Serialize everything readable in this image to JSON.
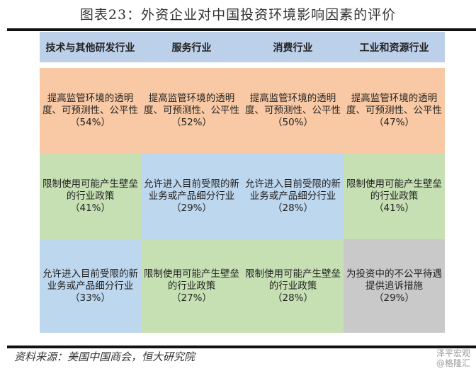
{
  "title": "图表23：外资企业对中国投资环境影响因素的评价",
  "headers": [
    "技术与其他研发行业",
    "服务行业",
    "消费行业",
    "工业和资源行业"
  ],
  "rows": [
    [
      {
        "text": "提高监管环境的透明度、可预测性、公平性",
        "pct": "（54%）",
        "color": "orange"
      },
      {
        "text": "提高监管环境的透明度、可预测性、公平性",
        "pct": "（52%）",
        "color": "orange"
      },
      {
        "text": "提高监管环境的透明度、可预测性、公平性",
        "pct": "（50%）",
        "color": "orange"
      },
      {
        "text": "提高监管环境的透明度、可预测性、公平性",
        "pct": "（47%）",
        "color": "orange"
      }
    ],
    [
      {
        "text": "限制使用可能产生壁垒的行业政策",
        "pct": "（41%）",
        "color": "green"
      },
      {
        "text": "允许进入目前受限的新业务或产品细分行业",
        "pct": "（29%）",
        "color": "blue"
      },
      {
        "text": "允许进入目前受限的新业务或产品细分行业",
        "pct": "（28%）",
        "color": "blue"
      },
      {
        "text": "限制使用可能产生壁垒的行业政策",
        "pct": "（41%）",
        "color": "green"
      }
    ],
    [
      {
        "text": "允许进入目前受限的新业务或产品细分行业",
        "pct": "（33%）",
        "color": "blue"
      },
      {
        "text": "限制使用可能产生壁垒的行业政策",
        "pct": "（27%）",
        "color": "green"
      },
      {
        "text": "限制使用可能产生壁垒的行业政策",
        "pct": "（28%）",
        "color": "green"
      },
      {
        "text": "为投资中的不公平待遇提供追诉措施",
        "pct": "（29%）",
        "color": "gray"
      }
    ]
  ],
  "colors": {
    "header": "#bcd0ea",
    "orange": "#f8c9a4",
    "green": "#c6e0b4",
    "blue": "#bdd7ee",
    "gray": "#c9c9c9"
  },
  "source": "资料来源：美国中国商会，恒大研究院",
  "watermark": {
    "line1": "泽平宏观",
    "line2": "@格隆汇"
  }
}
